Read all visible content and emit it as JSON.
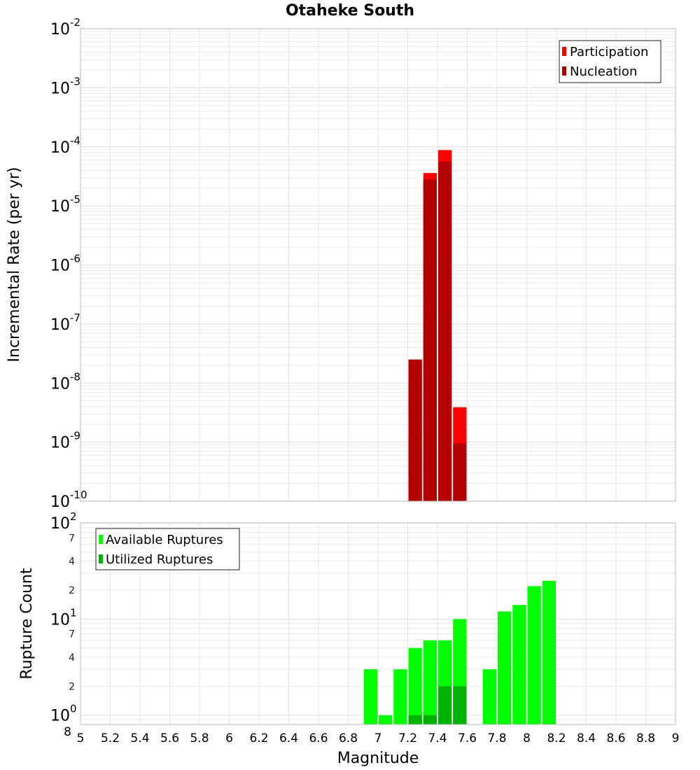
{
  "colors": {
    "participation": "#ff0000",
    "nucleation": "#b30000",
    "available": "#00ff00",
    "utilized": "#00b300",
    "grid": "#e6e6e6",
    "frame": "#bbbbbb"
  },
  "chart_data": {
    "title": "Otaheke South",
    "type": "bar",
    "xlabel": "Magnitude",
    "x_ticks": [
      "5",
      "5.2",
      "5.4",
      "5.6",
      "5.8",
      "6",
      "6.2",
      "6.4",
      "6.6",
      "6.8",
      "7",
      "7.2",
      "7.4",
      "7.6",
      "7.8",
      "8",
      "8.2",
      "8.4",
      "8.6",
      "8.8",
      "9"
    ],
    "xlim": [
      5,
      9
    ],
    "bar_width": 0.1,
    "top": {
      "ylabel": "Incremental Rate (per yr)",
      "scale": "log",
      "ylim": [
        1e-10,
        0.01
      ],
      "y_tick_labels": [
        {
          "base": "10",
          "exp": "-10",
          "value": 1e-10
        },
        {
          "base": "10",
          "exp": "-9",
          "value": 1e-09
        },
        {
          "base": "10",
          "exp": "-8",
          "value": 1e-08
        },
        {
          "base": "10",
          "exp": "-7",
          "value": 1e-07
        },
        {
          "base": "10",
          "exp": "-6",
          "value": 1e-06
        },
        {
          "base": "10",
          "exp": "-5",
          "value": 1e-05
        },
        {
          "base": "10",
          "exp": "-4",
          "value": 0.0001
        },
        {
          "base": "10",
          "exp": "-3",
          "value": 0.001
        },
        {
          "base": "10",
          "exp": "-2",
          "value": 0.01
        }
      ],
      "legend": [
        "Participation",
        "Nucleation"
      ],
      "legend_position": "top-right",
      "series": [
        {
          "name": "Participation",
          "x": [
            7.25,
            7.35,
            7.45,
            7.55
          ],
          "values": [
            2.5e-08,
            3.6e-05,
            8.8e-05,
            3.9e-09
          ]
        },
        {
          "name": "Nucleation",
          "x": [
            7.25,
            7.35,
            7.45,
            7.55
          ],
          "values": [
            2.5e-08,
            2.8e-05,
            5.6e-05,
            9.5e-10
          ]
        }
      ]
    },
    "bottom": {
      "ylabel": "Rupture Count",
      "scale": "log",
      "ylim": [
        0.8,
        100
      ],
      "y_tick_labels": [
        {
          "text": "8",
          "value": 0.8
        },
        {
          "base": "10",
          "exp": "0",
          "value": 1
        },
        {
          "text": "2",
          "value": 2
        },
        {
          "text": "4",
          "value": 4
        },
        {
          "text": "7",
          "value": 7
        },
        {
          "base": "10",
          "exp": "1",
          "value": 10
        },
        {
          "text": "2",
          "value": 20
        },
        {
          "text": "4",
          "value": 40
        },
        {
          "text": "7",
          "value": 70
        },
        {
          "base": "10",
          "exp": "2",
          "value": 100
        }
      ],
      "legend": [
        "Available Ruptures",
        "Utilized Ruptures"
      ],
      "legend_position": "top-left",
      "series": [
        {
          "name": "Available Ruptures",
          "x": [
            6.95,
            7.05,
            7.15,
            7.25,
            7.35,
            7.45,
            7.55,
            7.75,
            7.85,
            7.95,
            8.05,
            8.15
          ],
          "values": [
            3,
            1,
            3,
            5,
            6,
            6,
            10,
            3,
            12,
            14,
            22,
            25
          ]
        },
        {
          "name": "Utilized Ruptures",
          "x": [
            7.25,
            7.35,
            7.45,
            7.55
          ],
          "values": [
            1,
            1,
            2,
            2
          ]
        }
      ]
    }
  }
}
